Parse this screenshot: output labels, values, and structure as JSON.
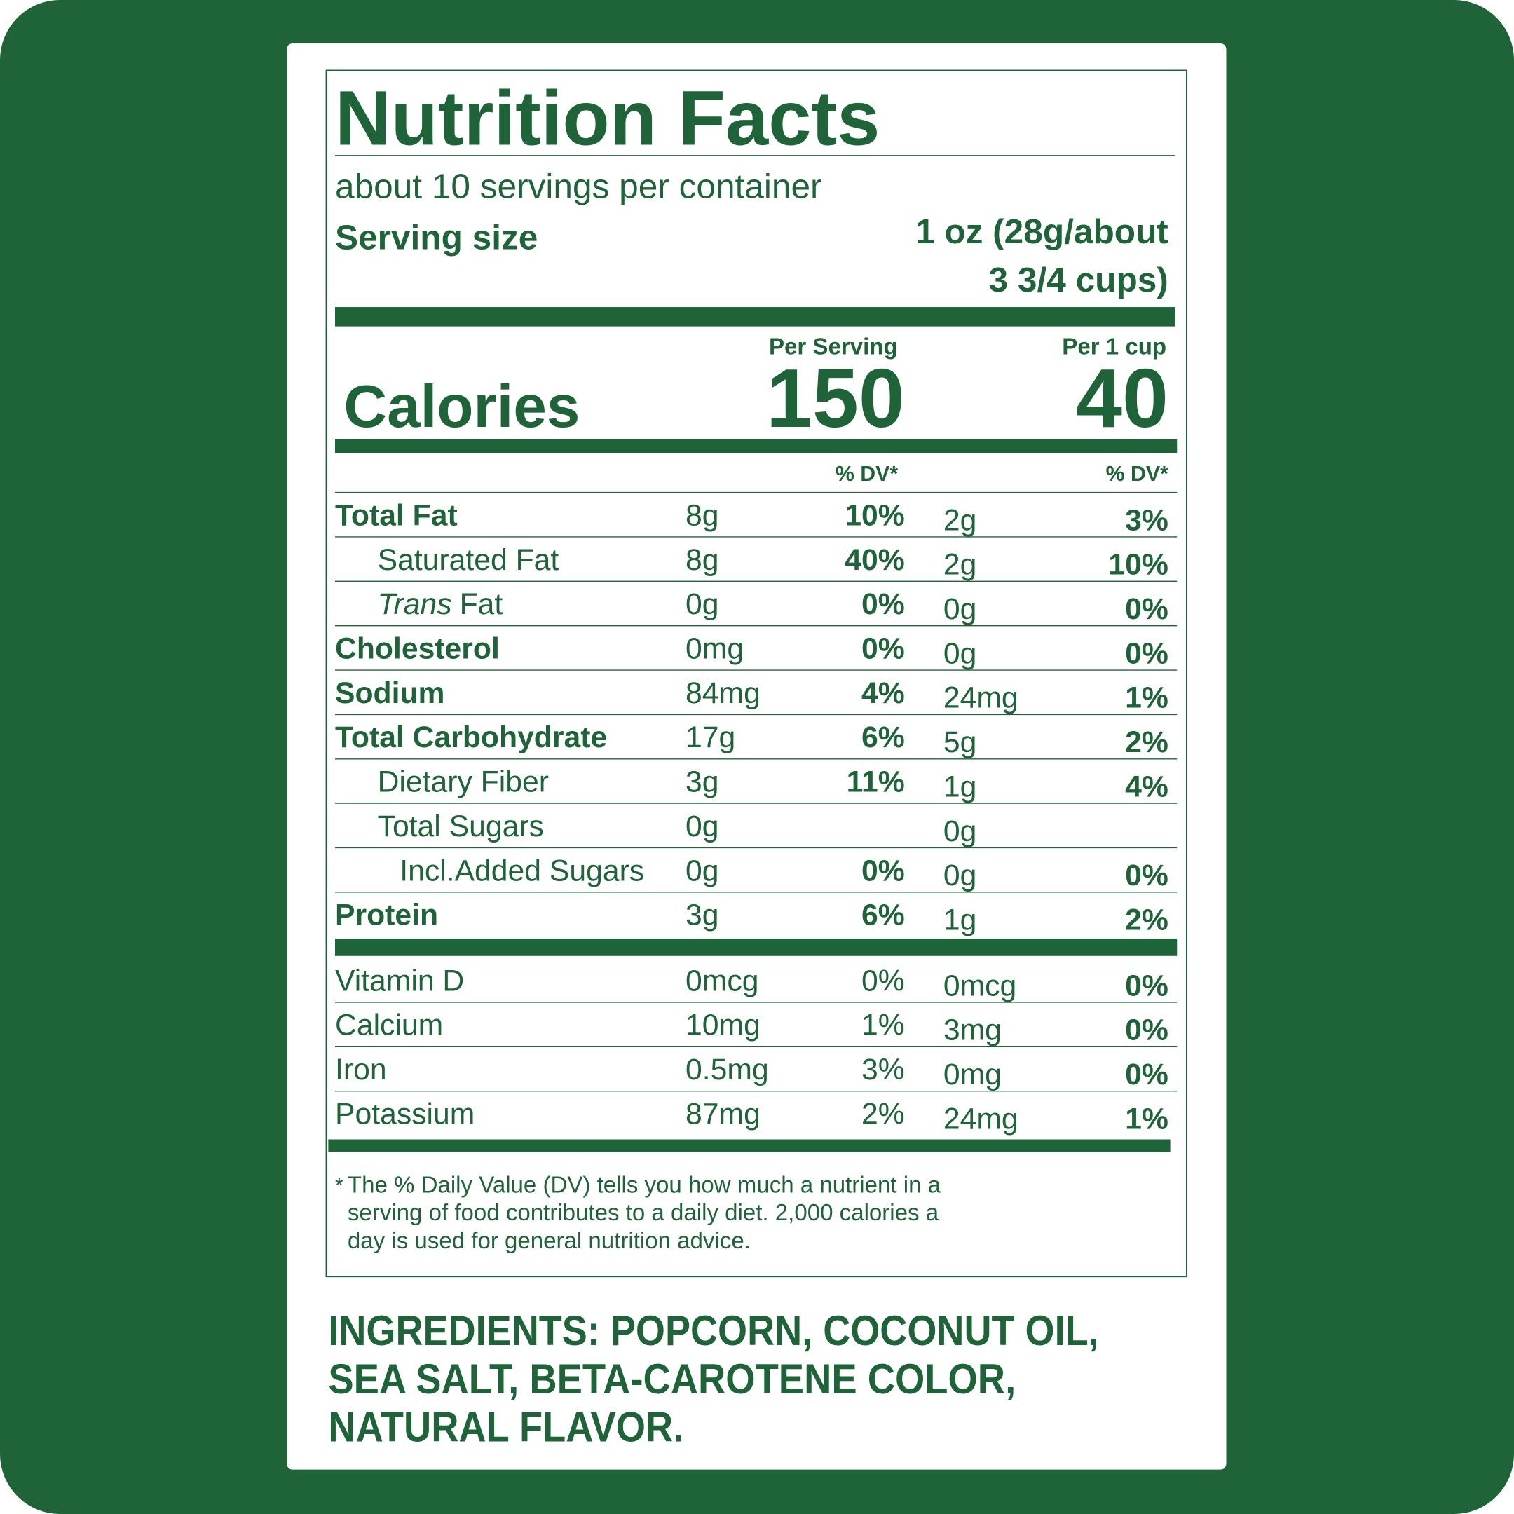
{
  "title": "Nutrition Facts",
  "servings": "about 10 servings per container",
  "serving_size": {
    "label": "Serving size",
    "value_lines": [
      "1 oz (28g/about",
      "3 3/4 cups)"
    ]
  },
  "calories": {
    "label": "Calories",
    "columns": [
      {
        "header": "Per Serving",
        "value": "150"
      },
      {
        "header": "Per 1 cup",
        "value": "40"
      }
    ]
  },
  "dv_header": [
    "% DV*",
    "% DV*"
  ],
  "nutrients": [
    {
      "name": "Total Fat",
      "bold": true,
      "indent": 0,
      "cells": [
        "8g",
        "10%",
        "2g",
        "3%"
      ]
    },
    {
      "name": "Saturated Fat",
      "bold": false,
      "indent": 1,
      "cells": [
        "8g",
        "40%",
        "2g",
        "10%"
      ]
    },
    {
      "name_italic": "Trans",
      "name": "Fat",
      "bold": false,
      "indent": 1,
      "cells": [
        "0g",
        "0%",
        "0g",
        "0%"
      ]
    },
    {
      "name": "Cholesterol",
      "bold": true,
      "indent": 0,
      "cells": [
        "0mg",
        "0%",
        "0g",
        "0%"
      ]
    },
    {
      "name": "Sodium",
      "bold": true,
      "indent": 0,
      "cells": [
        "84mg",
        "4%",
        "24mg",
        "1%"
      ]
    },
    {
      "name": "Total Carbohydrate",
      "bold": true,
      "indent": 0,
      "cells": [
        "17g",
        "6%",
        "5g",
        "2%"
      ]
    },
    {
      "name": "Dietary Fiber",
      "bold": false,
      "indent": 1,
      "cells": [
        "3g",
        "11%",
        "1g",
        "4%"
      ]
    },
    {
      "name": "Total Sugars",
      "bold": false,
      "indent": 1,
      "cells": [
        "0g",
        null,
        "0g",
        null
      ]
    },
    {
      "name": "Incl.Added Sugars",
      "bold": false,
      "indent": 2,
      "cells": [
        "0g",
        "0%",
        "0g",
        "0%"
      ]
    },
    {
      "name": "Protein",
      "bold": true,
      "indent": 0,
      "cells": [
        "3g",
        "6%",
        "1g",
        "2%"
      ]
    }
  ],
  "vitamins": [
    {
      "name": "Vitamin D",
      "cells": [
        "0mcg",
        "0%",
        "0mcg",
        "0%"
      ]
    },
    {
      "name": "Calcium",
      "cells": [
        "10mg",
        "1%",
        "3mg",
        "0%"
      ]
    },
    {
      "name": "Iron",
      "cells": [
        "0.5mg",
        "3%",
        "0mg",
        "0%"
      ]
    },
    {
      "name": "Potassium",
      "cells": [
        "87mg",
        "2%",
        "24mg",
        "1%"
      ]
    }
  ],
  "footnote": {
    "mark": "*",
    "lines": [
      "The % Daily Value (DV) tells you how much a nutrient in a",
      "serving of food contributes to a daily diet. 2,000 calories a",
      "day is used for general nutrition advice."
    ]
  },
  "ingredients": {
    "lines": [
      "INGREDIENTS: POPCORN, COCONUT OIL,",
      "SEA SALT, BETA-CAROTENE COLOR,",
      "NATURAL FLAVOR."
    ]
  }
}
